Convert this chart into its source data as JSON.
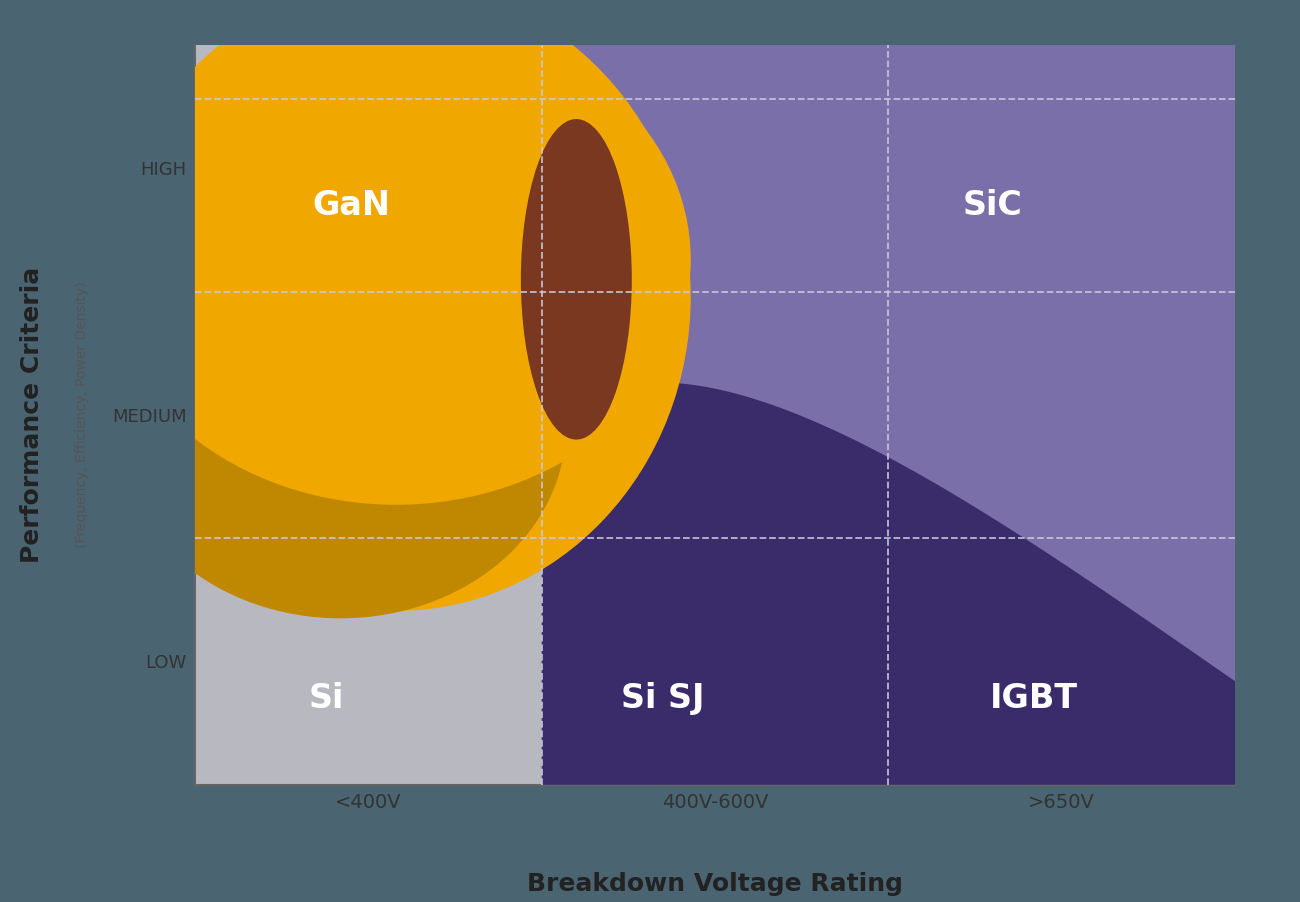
{
  "background_outer": "#4a6472",
  "background_plot": "#ffffff",
  "color_si": "#b8b8c0",
  "color_gan": "#f0a800",
  "color_gan_dark": "#c08800",
  "color_sic": "#7b6faa",
  "color_igbt_dark": "#3a2b6a",
  "color_brown_overlap": "#7a3820",
  "title_x": "Breakdown Voltage Rating",
  "title_y": "Performance Criteria",
  "subtitle_y": "(Frequency, Efficiency, Power Density)",
  "yticks": [
    "LOW",
    "MEDIUM",
    "HIGH"
  ],
  "xticks": [
    "<400V",
    "400V-600V",
    ">650V"
  ],
  "label_fontsize": 24,
  "axis_tick_fontsize": 14,
  "axis_title_fontsize": 18,
  "grid_color": "#c8c8dc",
  "grid_alpha": 0.9
}
